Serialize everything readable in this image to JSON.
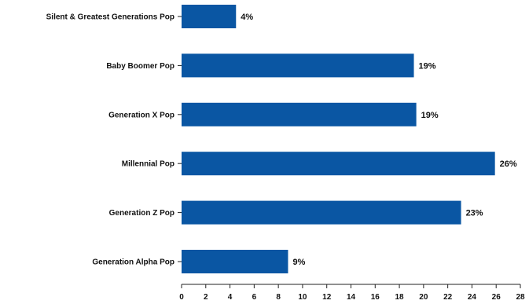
{
  "chart_data": {
    "type": "bar",
    "orientation": "horizontal",
    "categories": [
      "Silent & Greatest Generations Pop",
      "Baby Boomer Pop",
      "Generation X Pop",
      "Millennial Pop",
      "Generation Z Pop",
      "Generation Alpha Pop"
    ],
    "values": [
      4.5,
      19.2,
      19.4,
      25.9,
      23.1,
      8.8
    ],
    "value_labels": [
      "4%",
      "19%",
      "19%",
      "26%",
      "23%",
      "9%"
    ],
    "xticks": [
      "0",
      "2",
      "4",
      "6",
      "8",
      "10",
      "12",
      "14",
      "16",
      "18",
      "20",
      "22",
      "24",
      "26",
      "28"
    ],
    "xlim": [
      0,
      28
    ],
    "grid": false,
    "bar_color": "#0a56a3"
  }
}
